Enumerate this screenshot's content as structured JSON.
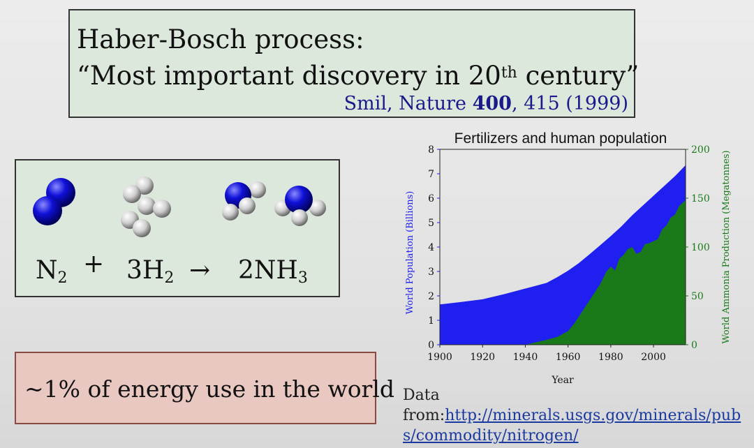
{
  "title": {
    "line1": "Haber-Bosch process:",
    "line2_prefix": "“Most important discovery in 20",
    "line2_sup": "th",
    "line2_suffix": " century”",
    "citation_prefix": "Smil, Nature ",
    "citation_volume": "400",
    "citation_suffix": ", 415 (1999)"
  },
  "reaction": {
    "n_symbol": "N",
    "n_sub": "2",
    "plus": "+",
    "h_coeff": "3H",
    "h_sub": "2",
    "arrow": "→",
    "nh_coeff": "2NH",
    "nh_sub": "3"
  },
  "energy": {
    "text": "~1% of energy use in the world"
  },
  "source": {
    "label": "Data",
    "from": "from:",
    "link": "http://minerals.usgs.gov/minerals/pubs/commodity/nitrogen/"
  },
  "colors": {
    "population": "#1f1ff0",
    "ammonia": "#1a7a1a",
    "box_green": "#dde8dd",
    "box_red": "#e9c8c2"
  },
  "chart_data": {
    "type": "area",
    "title": "Fertilizers and human population",
    "xlabel": "Year",
    "ylabel_left": "World Population (Billions)",
    "ylabel_right": "World Ammonia Production (Megatonnes)",
    "xlim": [
      1900,
      2015
    ],
    "ylim_left": [
      0,
      8
    ],
    "ylim_right": [
      0,
      200
    ],
    "x_ticks": [
      1900,
      1920,
      1940,
      1960,
      1980,
      2000
    ],
    "y_ticks_left": [
      0,
      1,
      2,
      3,
      4,
      5,
      6,
      7,
      8
    ],
    "y_ticks_right": [
      0,
      50,
      100,
      150,
      200
    ],
    "series": [
      {
        "name": "World Population (Billions)",
        "axis": "left",
        "x": [
          1900,
          1910,
          1920,
          1930,
          1940,
          1950,
          1955,
          1960,
          1965,
          1970,
          1975,
          1980,
          1985,
          1990,
          1995,
          2000,
          2005,
          2010,
          2015
        ],
        "y": [
          1.65,
          1.75,
          1.86,
          2.07,
          2.3,
          2.53,
          2.77,
          3.03,
          3.34,
          3.7,
          4.07,
          4.45,
          4.85,
          5.3,
          5.7,
          6.1,
          6.5,
          6.9,
          7.35
        ]
      },
      {
        "name": "World Ammonia Production (Megatonnes)",
        "axis": "right",
        "x": [
          1900,
          1940,
          1946,
          1950,
          1955,
          1960,
          1963,
          1966,
          1969,
          1972,
          1975,
          1978,
          1980,
          1982,
          1984,
          1986,
          1988,
          1990,
          1992,
          1994,
          1996,
          1998,
          2000,
          2002,
          2004,
          2006,
          2008,
          2010,
          2012,
          2015
        ],
        "y": [
          0,
          0,
          3,
          5,
          8,
          14,
          22,
          32,
          42,
          52,
          62,
          75,
          80,
          76,
          88,
          92,
          98,
          100,
          93,
          95,
          103,
          104,
          106,
          108,
          118,
          122,
          130,
          133,
          142,
          148
        ]
      }
    ]
  }
}
